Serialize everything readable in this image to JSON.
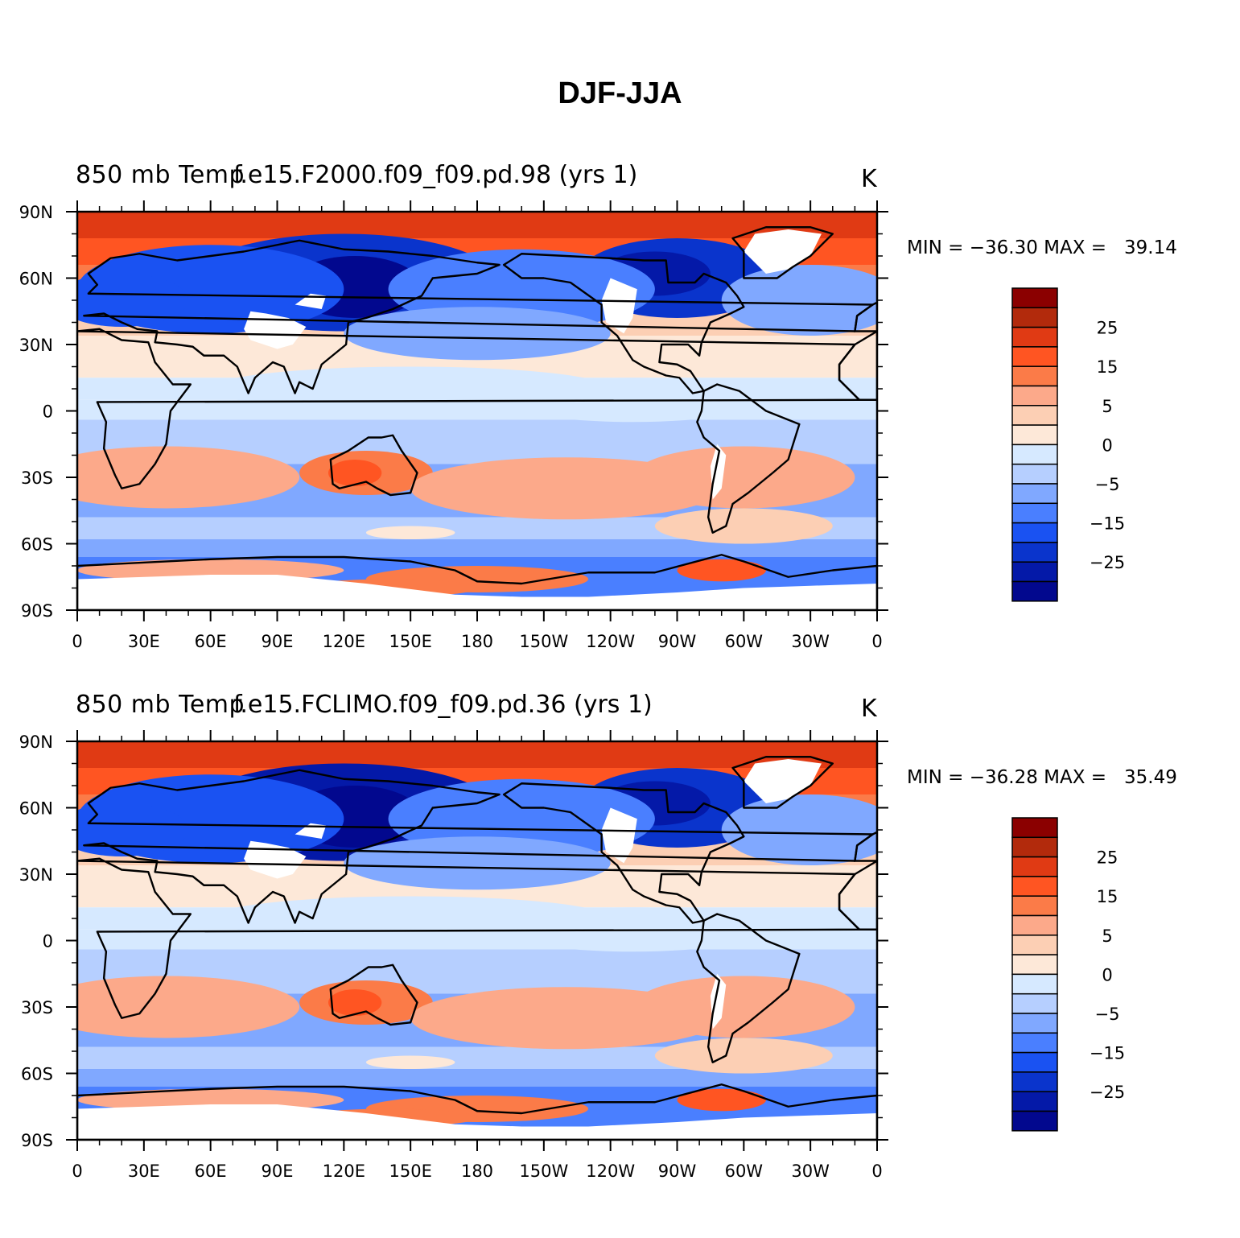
{
  "main_title": "DJF-JJA",
  "panels": [
    {
      "title_prefix": "850 mb Temp",
      "title_case": "f.e15.F2000.f09_f09.pd.98 (yrs 1)",
      "units": "K",
      "min_label": "MIN = −36.30",
      "max_label": "MAX =   39.14"
    },
    {
      "title_prefix": "850 mb Temp",
      "title_case": "f.e15.FCLIMO.f09_f09.pd.36 (yrs 1)",
      "units": "K",
      "min_label": "MIN = −36.28",
      "max_label": "MAX =   35.49"
    }
  ],
  "x_tick_labels": [
    "0",
    "30E",
    "60E",
    "90E",
    "120E",
    "150E",
    "180",
    "150W",
    "120W",
    "90W",
    "60W",
    "30W",
    "0"
  ],
  "y_tick_labels": [
    "90N",
    "60N",
    "30N",
    "0",
    "30S",
    "60S",
    "90S"
  ],
  "colorbar": {
    "levels": [
      -30,
      -25,
      -20,
      -15,
      -10,
      -5,
      -2,
      0,
      2,
      5,
      10,
      15,
      20,
      25,
      30
    ],
    "labels": [
      "25",
      "15",
      "5",
      "0",
      "−5",
      "−15",
      "−25"
    ],
    "colors_top_to_bottom": [
      "#8b0000",
      "#b22a0c",
      "#e03a14",
      "#ff5522",
      "#fb7b48",
      "#fca98a",
      "#fccfb4",
      "#fde8d8",
      "#d6e9ff",
      "#b6cfff",
      "#80a8ff",
      "#4a7fff",
      "#1a52f2",
      "#0a34cc",
      "#0419a8",
      "#02088e"
    ]
  },
  "chart_data": {
    "type": "heatmap",
    "variable": "850 mb Temp",
    "units": "K",
    "x_range": [
      0,
      360
    ],
    "y_range": [
      -90,
      90
    ],
    "panels": [
      {
        "case": "f.e15.F2000.f09_f09.pd.98 (yrs 1)",
        "min": -36.3,
        "max": 39.14
      },
      {
        "case": "f.e15.FCLIMO.f09_f09.pd.36 (yrs 1)",
        "min": -36.28,
        "max": 35.49
      }
    ]
  }
}
